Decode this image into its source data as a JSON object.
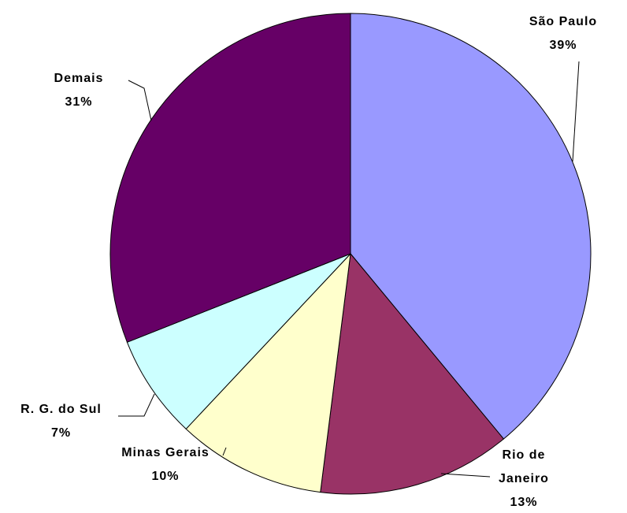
{
  "chart_data": {
    "type": "pie",
    "categories": [
      "São Paulo",
      "Rio de Janeiro",
      "Minas Gerais",
      "R. G. do Sul",
      "Demais"
    ],
    "values": [
      39,
      13,
      10,
      7,
      31
    ],
    "value_labels": [
      "39%",
      "13%",
      "10%",
      "7%",
      "31%"
    ],
    "colors": [
      "#9999ff",
      "#993366",
      "#ffffcc",
      "#ccffff",
      "#660066"
    ]
  }
}
